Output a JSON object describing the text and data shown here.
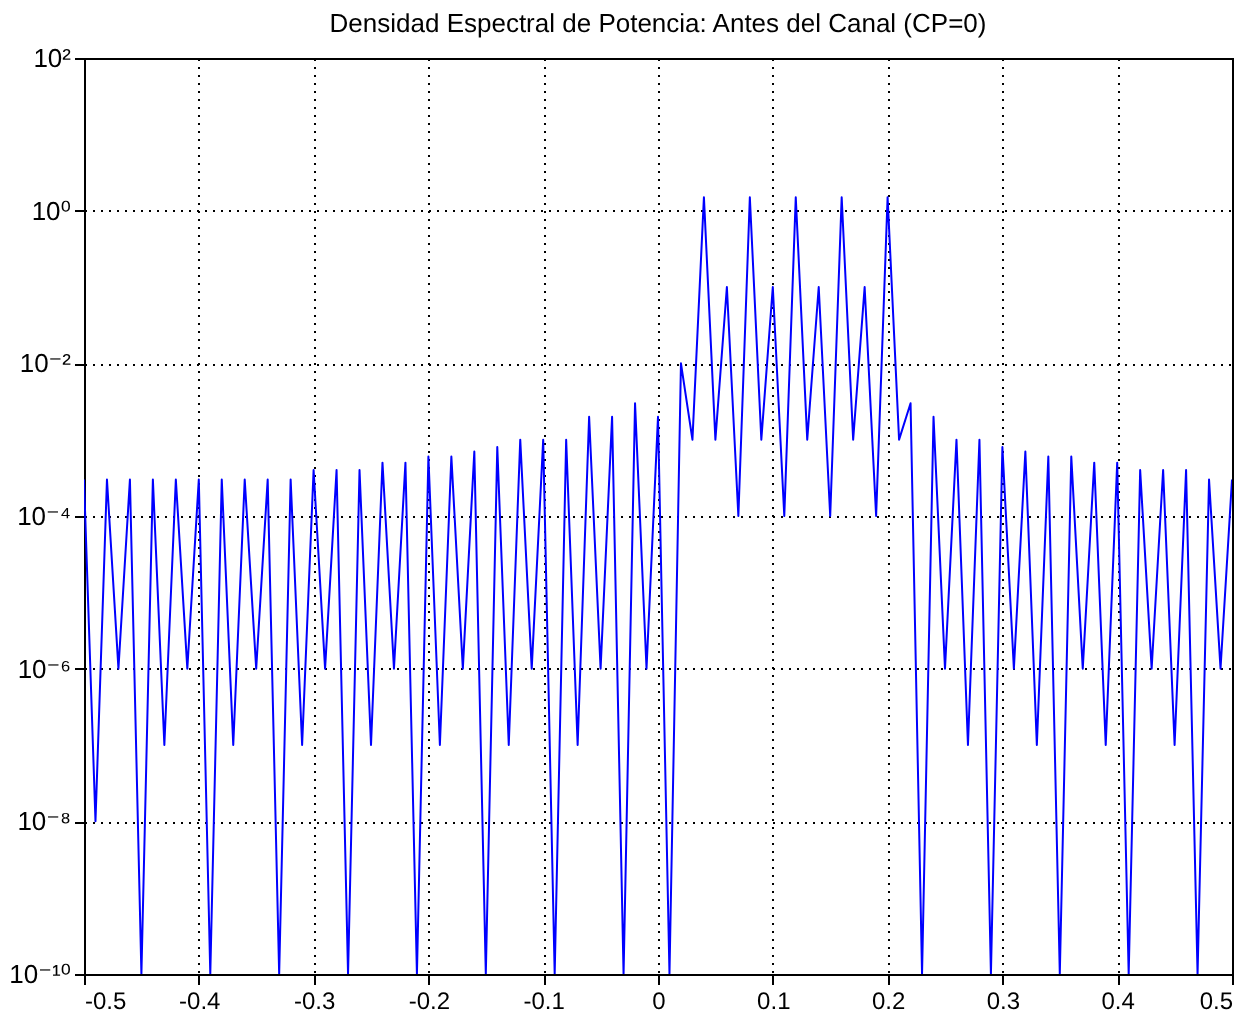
{
  "chart_data": {
    "type": "line",
    "title": "Densidad Espectral de Potencia: Antes del Canal (CP=0)",
    "log": "y",
    "grid": true,
    "line_style": "solid",
    "x": [
      -0.5,
      -0.49,
      -0.48,
      -0.47,
      -0.46,
      -0.45,
      -0.44,
      -0.43,
      -0.42,
      -0.41,
      -0.4,
      -0.39,
      -0.38,
      -0.37,
      -0.36,
      -0.35,
      -0.34,
      -0.33,
      -0.32,
      -0.31,
      -0.3,
      -0.29,
      -0.28,
      -0.27,
      -0.26,
      -0.25,
      -0.24,
      -0.23,
      -0.22,
      -0.21,
      -0.2,
      -0.19,
      -0.18,
      -0.17,
      -0.16,
      -0.15,
      -0.14,
      -0.13,
      -0.12,
      -0.11,
      -0.1,
      -0.09,
      -0.08,
      -0.07,
      -0.06,
      -0.05,
      -0.04,
      -0.03,
      -0.02,
      -0.01,
      0,
      0.01,
      0.02,
      0.03,
      0.04,
      0.05,
      0.06,
      0.07,
      0.08,
      0.09,
      0.1,
      0.11,
      0.12,
      0.13,
      0.14,
      0.15,
      0.16,
      0.17,
      0.18,
      0.19,
      0.2,
      0.21,
      0.22,
      0.23,
      0.24,
      0.25,
      0.26,
      0.27,
      0.28,
      0.29,
      0.3,
      0.31,
      0.32,
      0.33,
      0.34,
      0.35,
      0.36,
      0.37,
      0.38,
      0.39,
      0.4,
      0.41,
      0.42,
      0.43,
      0.44,
      0.45,
      0.46,
      0.47,
      0.48,
      0.49,
      0.5
    ],
    "series": [
      {
        "color": "#0000ff",
        "values": [
          0.0003,
          1e-08,
          0.0003,
          1e-06,
          0.0003,
          1e-10,
          0.0003,
          1e-07,
          0.0003,
          1e-06,
          0.0003,
          1e-10,
          0.0003,
          1e-07,
          0.0003,
          1e-06,
          0.0003,
          1e-10,
          0.0003,
          1e-07,
          0.0004,
          1e-06,
          0.0004,
          1e-10,
          0.0004,
          1e-07,
          0.0005,
          1e-06,
          0.0005,
          1e-10,
          0.0006,
          1e-07,
          0.0006,
          1e-06,
          0.0007,
          1e-10,
          0.0008,
          1e-07,
          0.001,
          1e-06,
          0.001,
          1e-10,
          0.001,
          1e-07,
          0.002,
          1e-06,
          0.002,
          1e-10,
          0.003,
          1e-06,
          0.002,
          1e-10,
          0.01,
          0.001,
          1.5,
          0.001,
          0.1,
          0.0001,
          1.5,
          0.001,
          0.1,
          0.0001,
          1.5,
          0.001,
          0.1,
          0.0001,
          1.5,
          0.001,
          0.1,
          0.0001,
          1.5,
          0.001,
          0.003,
          1e-10,
          0.002,
          1e-06,
          0.001,
          1e-07,
          0.001,
          1e-10,
          0.0008,
          1e-06,
          0.0007,
          1e-07,
          0.0006,
          1e-10,
          0.0006,
          1e-06,
          0.0005,
          1e-07,
          0.0005,
          1e-10,
          0.0004,
          1e-06,
          0.0004,
          1e-07,
          0.0004,
          1e-10,
          0.0003,
          1e-06,
          0.0003
        ]
      }
    ],
    "xlim": [
      -0.5,
      0.5
    ],
    "xticks": [
      -0.5,
      -0.4,
      -0.3,
      -0.2,
      -0.1,
      0,
      0.1,
      0.2,
      0.3,
      0.4,
      0.5
    ],
    "ylim": [
      1e-10,
      100
    ],
    "yticks": [
      {
        "value": 1e-10,
        "label": "10⁻¹⁰"
      },
      {
        "value": 1e-08,
        "label": "10⁻⁸"
      },
      {
        "value": 1e-06,
        "label": "10⁻⁶"
      },
      {
        "value": 0.0001,
        "label": "10⁻⁴"
      },
      {
        "value": 0.01,
        "label": "10⁻²"
      },
      {
        "value": 1,
        "label": "10⁰"
      },
      {
        "value": 100,
        "label": "10²"
      }
    ]
  }
}
